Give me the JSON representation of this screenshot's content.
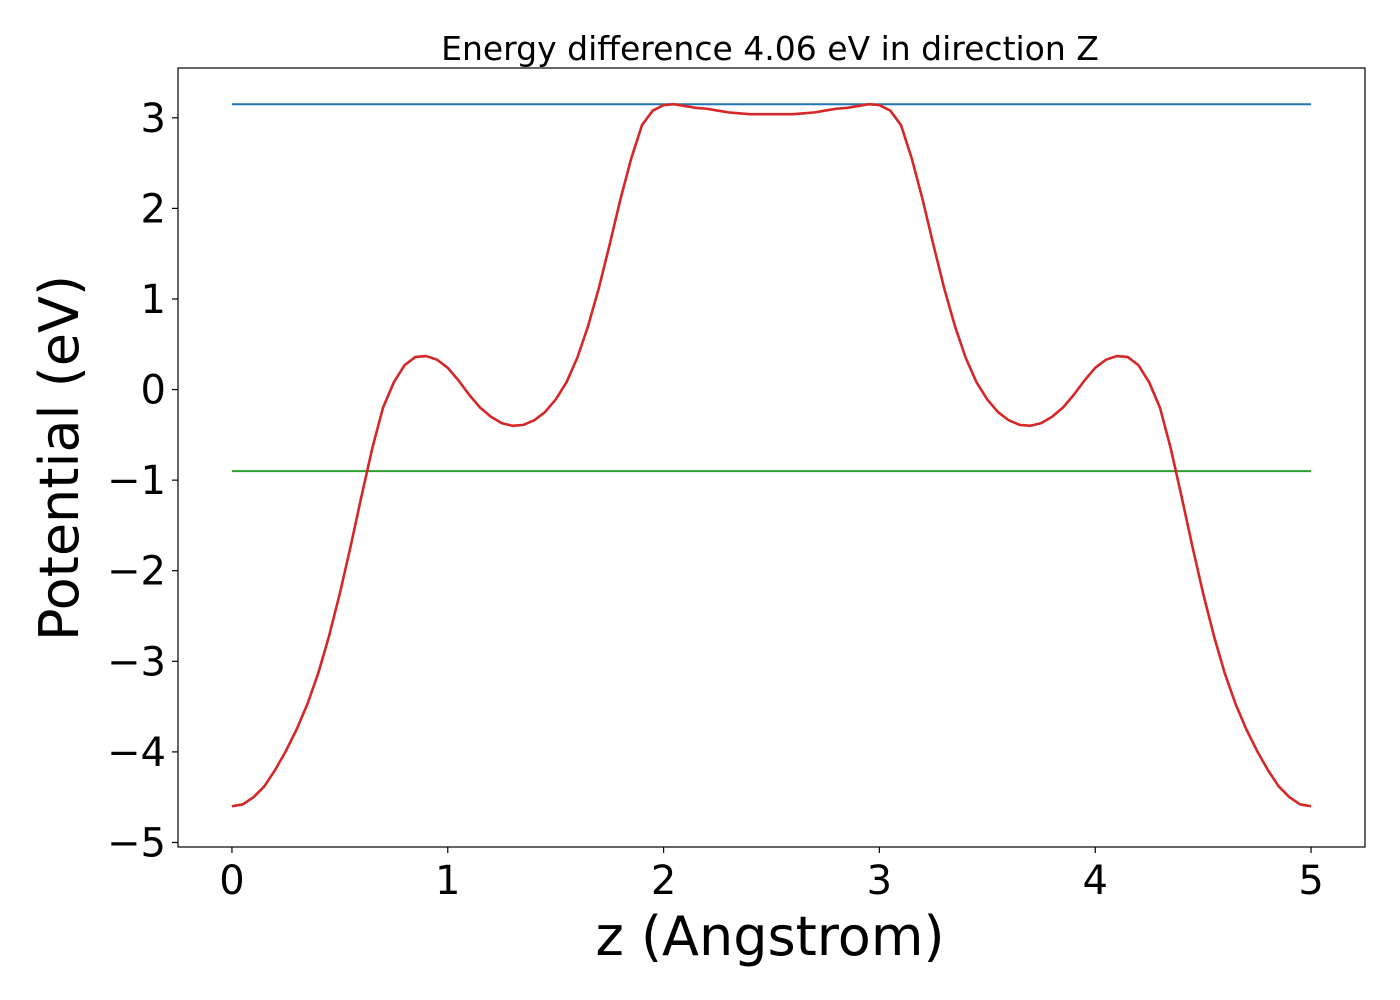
{
  "chart_data": {
    "type": "line",
    "title": "Energy difference 4.06 eV in direction Z",
    "xlabel": "z (Angstrom)",
    "ylabel": "Potential (eV)",
    "xlim": [
      -0.25,
      5.25
    ],
    "ylim": [
      -5.05,
      3.55
    ],
    "xticks": [
      0,
      1,
      2,
      3,
      4,
      5
    ],
    "xtick_labels": [
      "0",
      "1",
      "2",
      "3",
      "4",
      "5"
    ],
    "yticks": [
      -5,
      -4,
      -3,
      -2,
      -1,
      0,
      1,
      2,
      3
    ],
    "ytick_labels": [
      "−5",
      "−4",
      "−3",
      "−2",
      "−1",
      "0",
      "1",
      "2",
      "3"
    ],
    "grid": false,
    "series": [
      {
        "color": "#1f77b4",
        "x": [
          0,
          5
        ],
        "y": [
          3.15,
          3.15
        ]
      },
      {
        "color": "#2ca02c",
        "x": [
          0,
          5
        ],
        "y": [
          -0.9,
          -0.9
        ]
      },
      {
        "color": "#d62728",
        "x": [
          0.0,
          0.05,
          0.1,
          0.15,
          0.2,
          0.25,
          0.3,
          0.35,
          0.4,
          0.45,
          0.5,
          0.55,
          0.6,
          0.65,
          0.7,
          0.75,
          0.8,
          0.85,
          0.9,
          0.95,
          1.0,
          1.05,
          1.1,
          1.15,
          1.2,
          1.25,
          1.3,
          1.35,
          1.4,
          1.45,
          1.5,
          1.55,
          1.6,
          1.65,
          1.7,
          1.75,
          1.8,
          1.85,
          1.9,
          1.95,
          2.0,
          2.05,
          2.1,
          2.15,
          2.2,
          2.25,
          2.3,
          2.35,
          2.4,
          2.45,
          2.5,
          2.55,
          2.6,
          2.65,
          2.7,
          2.75,
          2.8,
          2.85,
          2.9,
          2.95,
          3.0,
          3.05,
          3.1,
          3.15,
          3.2,
          3.25,
          3.3,
          3.35,
          3.4,
          3.45,
          3.5,
          3.55,
          3.6,
          3.65,
          3.7,
          3.75,
          3.8,
          3.85,
          3.9,
          3.95,
          4.0,
          4.05,
          4.1,
          4.15,
          4.2,
          4.25,
          4.3,
          4.35,
          4.4,
          4.45,
          4.5,
          4.55,
          4.6,
          4.65,
          4.7,
          4.75,
          4.8,
          4.85,
          4.9,
          4.95,
          5.0
        ],
        "y": [
          -4.6,
          -4.58,
          -4.5,
          -4.38,
          -4.2,
          -3.99,
          -3.75,
          -3.47,
          -3.13,
          -2.72,
          -2.25,
          -1.73,
          -1.18,
          -0.65,
          -0.2,
          0.08,
          0.27,
          0.36,
          0.37,
          0.33,
          0.24,
          0.1,
          -0.06,
          -0.2,
          -0.3,
          -0.37,
          -0.4,
          -0.39,
          -0.34,
          -0.25,
          -0.11,
          0.08,
          0.35,
          0.7,
          1.12,
          1.6,
          2.1,
          2.55,
          2.92,
          3.08,
          3.14,
          3.15,
          3.13,
          3.11,
          3.1,
          3.08,
          3.06,
          3.05,
          3.04,
          3.04,
          3.04,
          3.04,
          3.04,
          3.05,
          3.06,
          3.08,
          3.1,
          3.11,
          3.13,
          3.15,
          3.14,
          3.08,
          2.92,
          2.55,
          2.1,
          1.6,
          1.12,
          0.7,
          0.35,
          0.08,
          -0.11,
          -0.25,
          -0.34,
          -0.39,
          -0.4,
          -0.37,
          -0.3,
          -0.2,
          -0.06,
          0.1,
          0.24,
          0.33,
          0.37,
          0.36,
          0.27,
          0.08,
          -0.2,
          -0.65,
          -1.18,
          -1.73,
          -2.25,
          -2.72,
          -3.13,
          -3.47,
          -3.75,
          -3.99,
          -4.2,
          -4.38,
          -4.5,
          -4.58,
          -4.6
        ]
      }
    ]
  }
}
